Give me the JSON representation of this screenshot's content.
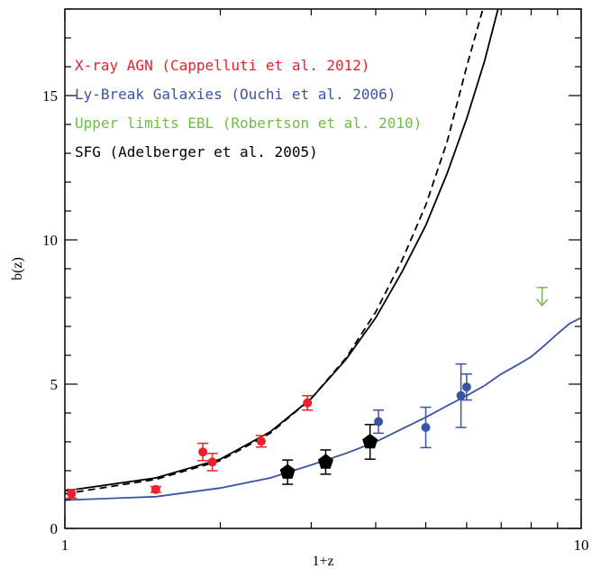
{
  "chart_data": {
    "type": "scatter",
    "xlabel": "1+z",
    "ylabel": "b(z)",
    "xscale": "log",
    "xlim": [
      1,
      10
    ],
    "ylim": [
      0,
      18
    ],
    "xticks": [
      {
        "value": 1,
        "label": "1"
      },
      {
        "value": 10,
        "label": "10"
      }
    ],
    "yticks": [
      {
        "value": 0,
        "label": "0"
      },
      {
        "value": 5,
        "label": "5"
      },
      {
        "value": 10,
        "label": "10"
      },
      {
        "value": 15,
        "label": "15"
      }
    ],
    "legend": {
      "placement": "top-left",
      "entries": [
        {
          "text": "X-ray AGN (Cappelluti et al. 2012)",
          "color": "#e8212b"
        },
        {
          "text": "Ly-Break Galaxies (Ouchi et al. 2006)",
          "color": "#3a53a4"
        },
        {
          "text": "Upper limits EBL (Robertson et al. 2010)",
          "color": "#6dbd45"
        },
        {
          "text": "SFG (Adelberger et al. 2005)",
          "color": "#000000"
        }
      ]
    },
    "series": [
      {
        "name": "X-ray AGN (Cappelluti et al. 2012)",
        "kind": "points",
        "marker": "circle",
        "color": "#e8212b",
        "points": [
          {
            "x": 1.03,
            "y": 1.2,
            "err": 0.15
          },
          {
            "x": 1.5,
            "y": 1.35,
            "err": 0.1
          },
          {
            "x": 1.85,
            "y": 2.65,
            "err": 0.3
          },
          {
            "x": 1.93,
            "y": 2.3,
            "err": 0.3
          },
          {
            "x": 2.4,
            "y": 3.02,
            "err": 0.2
          },
          {
            "x": 2.95,
            "y": 4.35,
            "err": 0.25
          }
        ]
      },
      {
        "name": "Ly-Break Galaxies (Ouchi et al. 2006)",
        "kind": "points",
        "marker": "circle",
        "color": "#3a53a4",
        "points": [
          {
            "x": 4.05,
            "y": 3.7,
            "err": 0.4
          },
          {
            "x": 5.0,
            "y": 3.5,
            "err": 0.7
          },
          {
            "x": 5.85,
            "y": 4.6,
            "err": 1.1
          },
          {
            "x": 6.0,
            "y": 4.9,
            "err": 0.45
          }
        ]
      },
      {
        "name": "SFG (Adelberger et al. 2005)",
        "kind": "points",
        "marker": "pentagon",
        "color": "#000000",
        "points": [
          {
            "x": 2.7,
            "y": 1.95,
            "err": 0.42
          },
          {
            "x": 3.2,
            "y": 2.3,
            "err": 0.42
          },
          {
            "x": 3.9,
            "y": 3.0,
            "err": 0.6
          }
        ]
      },
      {
        "name": "Upper limits EBL (Robertson et al. 2010)",
        "kind": "upper-limit",
        "color": "#6dbd45",
        "points": [
          {
            "x": 8.4,
            "y": 8.35
          }
        ]
      },
      {
        "kind": "line",
        "style": "solid",
        "color": "#000000",
        "points": [
          [
            1.0,
            1.3
          ],
          [
            1.5,
            1.75
          ],
          [
            2.0,
            2.4
          ],
          [
            2.5,
            3.35
          ],
          [
            3.0,
            4.5
          ],
          [
            3.5,
            5.85
          ],
          [
            4.0,
            7.3
          ],
          [
            4.5,
            8.9
          ],
          [
            5.0,
            10.5
          ],
          [
            5.5,
            12.3
          ],
          [
            6.0,
            14.2
          ],
          [
            6.5,
            16.2
          ],
          [
            6.9,
            18.0
          ]
        ]
      },
      {
        "kind": "line",
        "style": "dashed",
        "color": "#000000",
        "points": [
          [
            1.0,
            1.2
          ],
          [
            1.5,
            1.7
          ],
          [
            2.0,
            2.35
          ],
          [
            2.5,
            3.3
          ],
          [
            3.0,
            4.5
          ],
          [
            3.5,
            5.9
          ],
          [
            4.0,
            7.5
          ],
          [
            4.5,
            9.3
          ],
          [
            5.0,
            11.2
          ],
          [
            5.5,
            13.4
          ],
          [
            6.0,
            16.0
          ],
          [
            6.45,
            18.0
          ]
        ]
      },
      {
        "kind": "line",
        "style": "solid",
        "color": "#3a53a4",
        "points": [
          [
            1.0,
            0.98
          ],
          [
            1.5,
            1.1
          ],
          [
            2.0,
            1.4
          ],
          [
            2.5,
            1.75
          ],
          [
            3.0,
            2.2
          ],
          [
            3.5,
            2.6
          ],
          [
            4.0,
            3.0
          ],
          [
            4.5,
            3.45
          ],
          [
            5.0,
            3.85
          ],
          [
            5.5,
            4.25
          ],
          [
            6.0,
            4.6
          ],
          [
            6.5,
            4.95
          ],
          [
            7.0,
            5.35
          ],
          [
            7.5,
            5.65
          ],
          [
            8.0,
            5.95
          ],
          [
            8.5,
            6.35
          ],
          [
            9.0,
            6.75
          ],
          [
            9.5,
            7.1
          ],
          [
            10.0,
            7.3
          ]
        ]
      }
    ]
  }
}
